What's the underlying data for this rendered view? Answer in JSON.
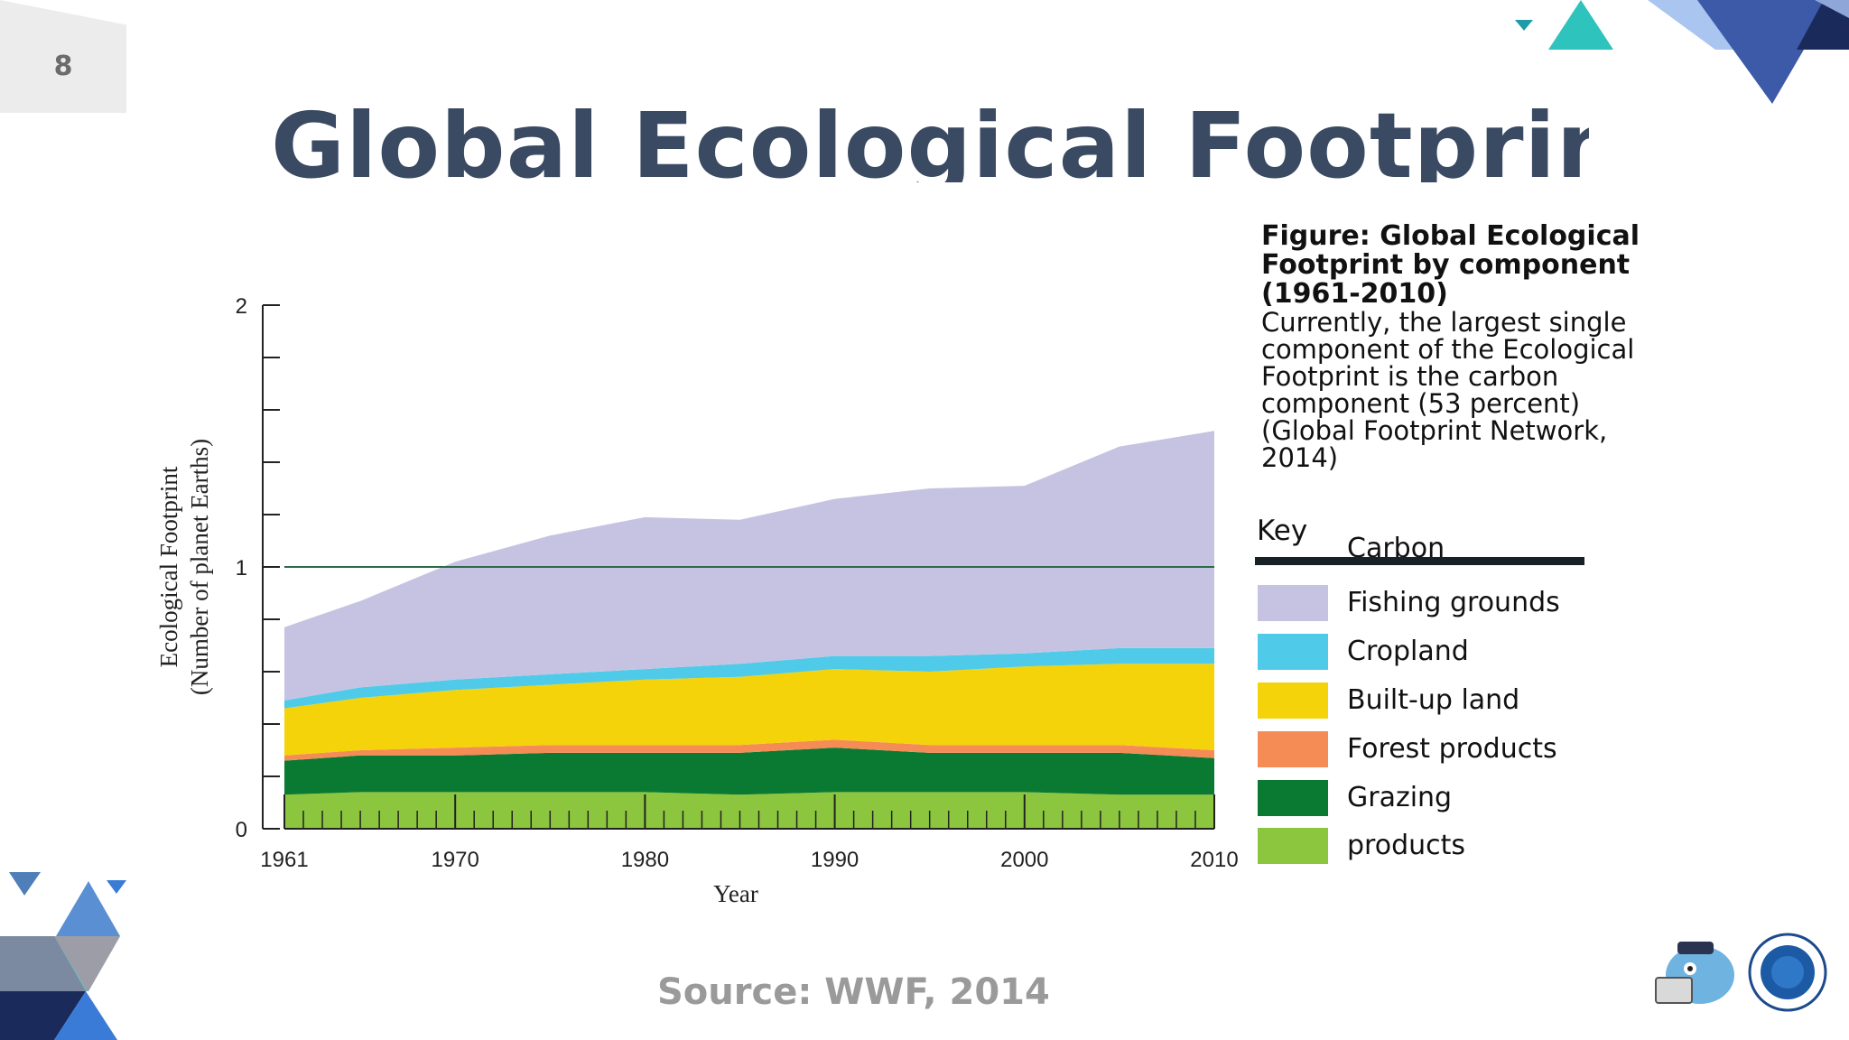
{
  "slide": {
    "page_number": "8",
    "title": "Global Ecological Footprint",
    "source": "Source: WWF, 2014"
  },
  "caption": {
    "title": "Figure: Global Ecological Footprint by component (1961-2010)",
    "body": "Currently, the largest single component of the Ecological Footprint is the carbon component (53 percent) (Global Footprint Network, 2014)"
  },
  "key": {
    "title": "Key",
    "carbon_label": "Carbon",
    "carbon_color": "#172226",
    "items": [
      {
        "label": "Fishing grounds",
        "color": "#c6c3e2"
      },
      {
        "label": "Cropland",
        "color": "#4fcbe9"
      },
      {
        "label": "Built-up land",
        "color": "#f4d30a"
      },
      {
        "label": "Forest products",
        "color": "#f68c55"
      },
      {
        "label": "Grazing",
        "color": "#0a7a32"
      },
      {
        "label": "products",
        "color": "#8cc63f"
      }
    ]
  },
  "chart_data": {
    "type": "area",
    "stacked": true,
    "title": "",
    "xlabel": "Year",
    "ylabel": "Ecological Footprint\n(Number of planet Earths)",
    "xlim": [
      1961,
      2010
    ],
    "ylim": [
      0,
      2
    ],
    "x_ticks": [
      1961,
      1970,
      1980,
      1990,
      2000,
      2010
    ],
    "y_ticks": [
      0,
      1,
      2
    ],
    "reference_line": 1,
    "x": [
      1961,
      1965,
      1970,
      1975,
      1980,
      1985,
      1990,
      1995,
      2000,
      2005,
      2010
    ],
    "series": [
      {
        "name": "products",
        "color": "#8cc63f",
        "values": [
          0.13,
          0.14,
          0.14,
          0.14,
          0.14,
          0.13,
          0.14,
          0.14,
          0.14,
          0.13,
          0.13
        ]
      },
      {
        "name": "Grazing",
        "color": "#0a7a32",
        "values": [
          0.13,
          0.14,
          0.14,
          0.15,
          0.15,
          0.16,
          0.17,
          0.15,
          0.15,
          0.16,
          0.14
        ]
      },
      {
        "name": "Forest products",
        "color": "#f68c55",
        "values": [
          0.02,
          0.02,
          0.03,
          0.03,
          0.03,
          0.03,
          0.03,
          0.03,
          0.03,
          0.03,
          0.03
        ]
      },
      {
        "name": "Built-up land",
        "color": "#f4d30a",
        "values": [
          0.18,
          0.2,
          0.22,
          0.23,
          0.25,
          0.26,
          0.27,
          0.28,
          0.3,
          0.31,
          0.33
        ]
      },
      {
        "name": "Cropland",
        "color": "#4fcbe9",
        "values": [
          0.03,
          0.04,
          0.04,
          0.04,
          0.04,
          0.05,
          0.05,
          0.06,
          0.05,
          0.06,
          0.06
        ]
      },
      {
        "name": "Fishing grounds",
        "color": "#c6c3e2",
        "values": [
          0.28,
          0.33,
          0.45,
          0.53,
          0.58,
          0.55,
          0.6,
          0.64,
          0.64,
          0.77,
          0.83
        ]
      }
    ]
  }
}
